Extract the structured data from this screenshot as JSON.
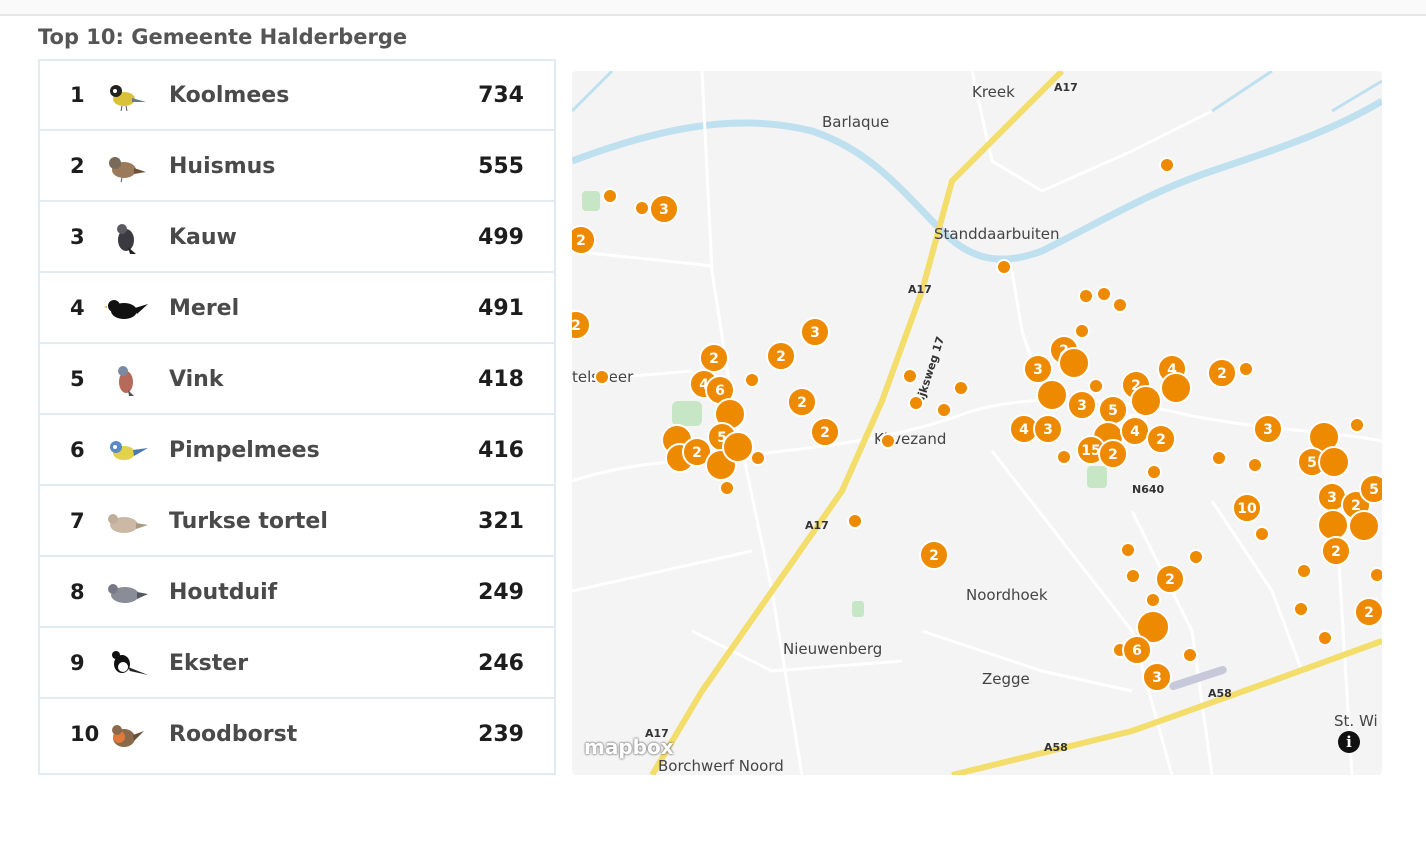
{
  "title": "Top 10: Gemeente Halderberge",
  "birds": [
    {
      "rank": "1",
      "name": "Koolmees",
      "count": "734",
      "icon": "great-tit-icon"
    },
    {
      "rank": "2",
      "name": "Huismus",
      "count": "555",
      "icon": "house-sparrow-icon"
    },
    {
      "rank": "3",
      "name": "Kauw",
      "count": "499",
      "icon": "jackdaw-icon"
    },
    {
      "rank": "4",
      "name": "Merel",
      "count": "491",
      "icon": "blackbird-icon"
    },
    {
      "rank": "5",
      "name": "Vink",
      "count": "418",
      "icon": "chaffinch-icon"
    },
    {
      "rank": "6",
      "name": "Pimpelmees",
      "count": "416",
      "icon": "blue-tit-icon"
    },
    {
      "rank": "7",
      "name": "Turkse tortel",
      "count": "321",
      "icon": "collared-dove-icon"
    },
    {
      "rank": "8",
      "name": "Houtduif",
      "count": "249",
      "icon": "wood-pigeon-icon"
    },
    {
      "rank": "9",
      "name": "Ekster",
      "count": "246",
      "icon": "magpie-icon"
    },
    {
      "rank": "10",
      "name": "Roodborst",
      "count": "239",
      "icon": "robin-icon"
    }
  ],
  "map": {
    "places": [
      "Kreek",
      "Barlaque",
      "Standdaarbuiten",
      "Noordhoek",
      "Nieuwenberg",
      "Zegge",
      "Borchwerf Noord",
      "St. Wi",
      "Klıvezand",
      "telsbeer"
    ],
    "roads": [
      "A17",
      "A17",
      "A17",
      "A17",
      "N640",
      "A58",
      "A58",
      "Rijksweg 17"
    ],
    "cluster_labels": [
      "3",
      "2",
      "2",
      "3",
      "2",
      "2",
      "4",
      "6",
      "5",
      "2",
      "2",
      "2",
      "2",
      "3",
      "2",
      "3",
      "5",
      "4",
      "3",
      "2",
      "3",
      "4",
      "2",
      "15",
      "2",
      "4",
      "2",
      "3",
      "2",
      "5",
      "3",
      "2",
      "10",
      "2",
      "3",
      "6",
      "3",
      "5",
      "2"
    ],
    "attribution": "mapbox",
    "colors": {
      "marker": "#ee8a00",
      "highway": "#f3dd6b",
      "water": "#bfe0ef",
      "park": "#c6e6c6",
      "land": "#f4f4f4"
    }
  }
}
